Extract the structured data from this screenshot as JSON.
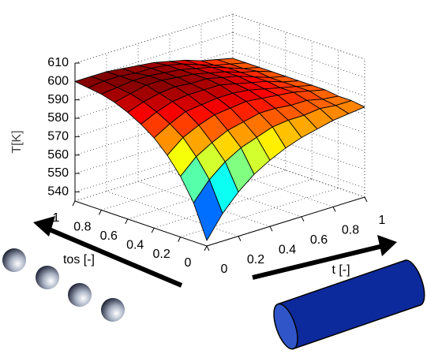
{
  "chart_data": {
    "type": "surface",
    "zlabel": "T[K]",
    "xlabel": "t [-]",
    "ylabel": "tos [-]",
    "x": [
      0,
      0.1,
      0.2,
      0.3,
      0.4,
      0.5,
      0.6,
      0.7,
      0.8,
      0.9,
      1
    ],
    "y": [
      0,
      0.1,
      0.2,
      0.3,
      0.4,
      0.5,
      0.6,
      0.7,
      0.8,
      0.9,
      1
    ],
    "z": [
      [
        538,
        550,
        559,
        566,
        571,
        575,
        578,
        580,
        582,
        583,
        584
      ],
      [
        556,
        566,
        573,
        578,
        581,
        584,
        585,
        585,
        586,
        585,
        585
      ],
      [
        568,
        576,
        581,
        585,
        587,
        589,
        589,
        588,
        588,
        586,
        585
      ],
      [
        577,
        584,
        588,
        591,
        592,
        593,
        592,
        591,
        590,
        588,
        586
      ],
      [
        584,
        589,
        593,
        594,
        595,
        595,
        594,
        592,
        590,
        588,
        586
      ],
      [
        589,
        593,
        596,
        597,
        597,
        597,
        595,
        593,
        591,
        588,
        586
      ],
      [
        593,
        596,
        598,
        599,
        598,
        598,
        596,
        594,
        591,
        588,
        586
      ],
      [
        596,
        598,
        600,
        600,
        599,
        598,
        596,
        594,
        591,
        589,
        586
      ],
      [
        598,
        599,
        600,
        600,
        599,
        598,
        596,
        594,
        591,
        588,
        586
      ],
      [
        599,
        600,
        600,
        599,
        599,
        598,
        596,
        593,
        590,
        588,
        586
      ],
      [
        600,
        600,
        600,
        599,
        598,
        597,
        595,
        593,
        590,
        588,
        586
      ]
    ],
    "xlim": [
      0,
      1
    ],
    "ylim": [
      0,
      1
    ],
    "zlim": [
      535,
      610
    ],
    "xticks": [
      0,
      0.2,
      0.4,
      0.6,
      0.8,
      1
    ],
    "yticks": [
      0,
      0.2,
      0.4,
      0.6,
      0.8,
      1
    ],
    "zticks": [
      540,
      550,
      560,
      570,
      580,
      590,
      600,
      610
    ],
    "colormap": "jet",
    "grid": true
  }
}
